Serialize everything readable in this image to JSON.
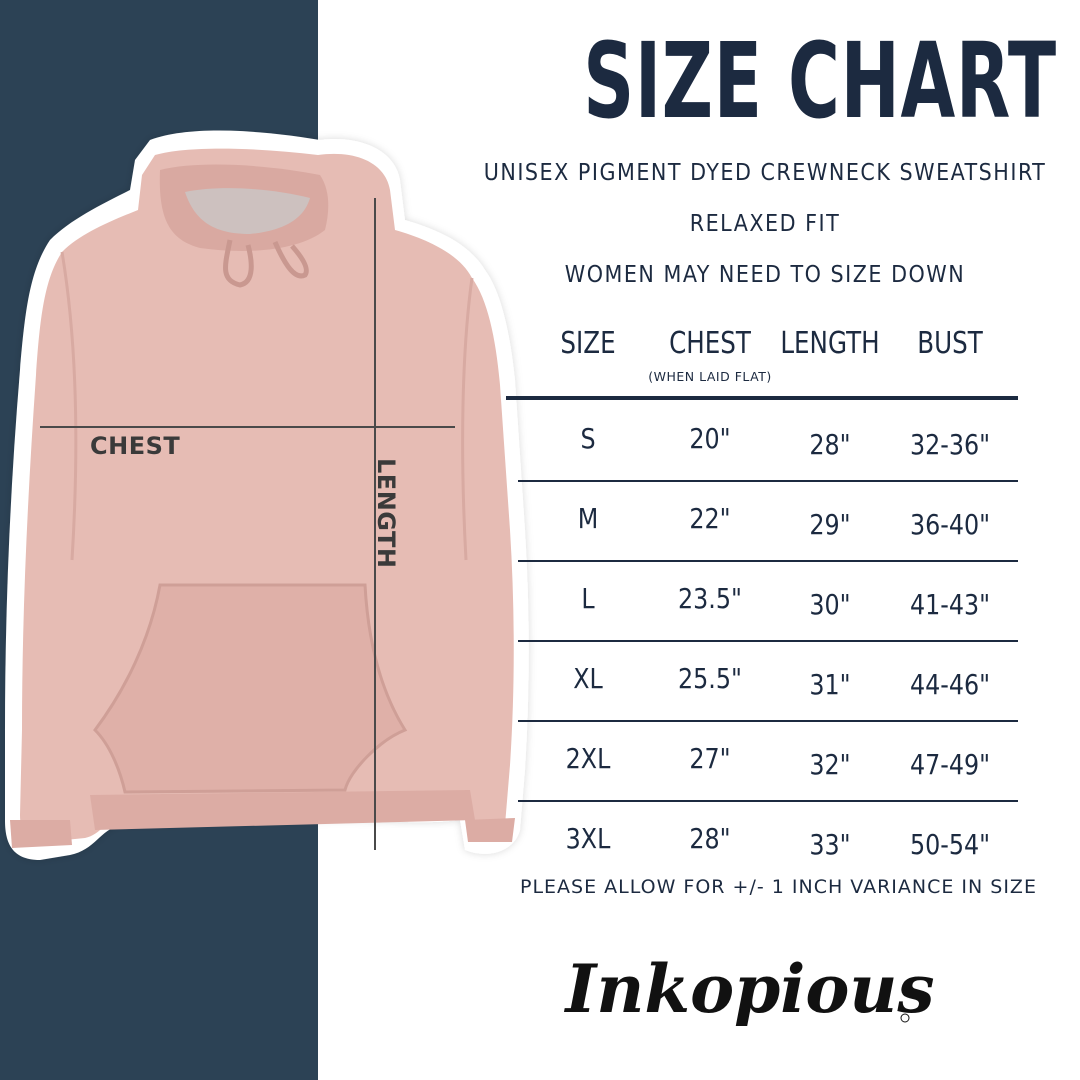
{
  "title": "SIZE CHART",
  "subtitles": {
    "product": "UNISEX PIGMENT DYED CREWNECK SWEATSHIRT",
    "fit": "RELAXED FIT",
    "note": "WOMEN MAY NEED TO SIZE DOWN"
  },
  "diagram_labels": {
    "chest": "CHEST",
    "length": "LENGTH"
  },
  "table": {
    "headers": [
      "SIZE",
      "CHEST",
      "LENGTH",
      "BUST"
    ],
    "chest_note": "(WHEN LAID FLAT)",
    "rows": [
      [
        "S",
        "20\"",
        "28\"",
        "32-36\""
      ],
      [
        "M",
        "22\"",
        "29\"",
        "36-40\""
      ],
      [
        "L",
        "23.5\"",
        "30\"",
        "41-43\""
      ],
      [
        "XL",
        "25.5\"",
        "31\"",
        "44-46\""
      ],
      [
        "2XL",
        "27\"",
        "32\"",
        "47-49\""
      ],
      [
        "3XL",
        "28\"",
        "33\"",
        "50-54\""
      ]
    ]
  },
  "footnote": "PLEASE ALLOW FOR +/- 1 INCH VARIANCE IN SIZE",
  "brand": "Inkopious",
  "colors": {
    "panel": "#2c4255",
    "text": "#1c2a40",
    "hoodie": "#e6bcb4"
  }
}
